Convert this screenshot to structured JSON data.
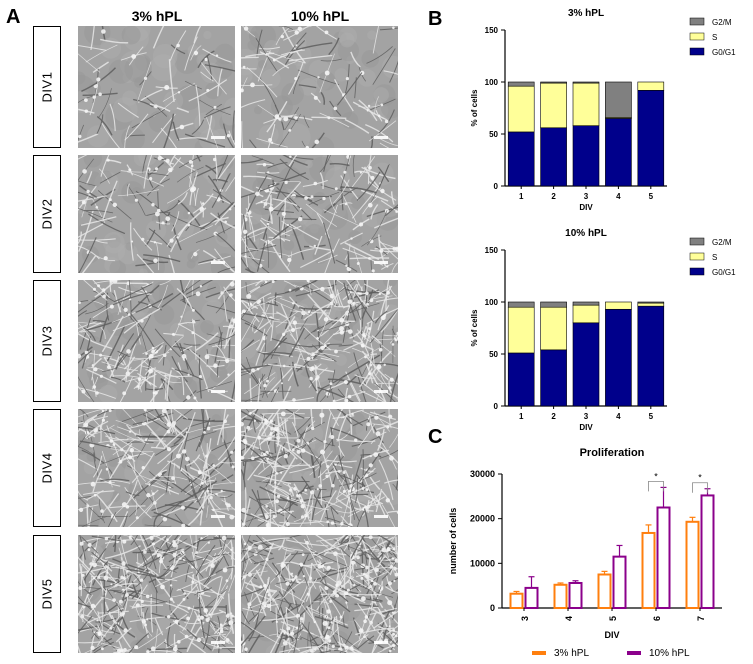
{
  "panel_labels": {
    "a": "A",
    "b": "B",
    "c": "C"
  },
  "panel_a": {
    "columns": [
      "3% hPL",
      "10% hPL"
    ],
    "rows": [
      "DIV1",
      "DIV2",
      "DIV3",
      "DIV4",
      "DIV5"
    ]
  },
  "chart_data": [
    {
      "type": "bar",
      "stacked": true,
      "title": "3% hPL",
      "xlabel": "DIV",
      "ylabel": "% of cells",
      "categories": [
        "1",
        "2",
        "3",
        "4",
        "5"
      ],
      "ylim": [
        0,
        150
      ],
      "yticks": [
        "0",
        "50",
        "100",
        "150"
      ],
      "series": [
        {
          "name": "G0/G1",
          "color": "#00008b",
          "values": [
            52,
            56,
            58,
            65,
            92
          ]
        },
        {
          "name": "S",
          "color": "#ffff99",
          "values": [
            44,
            43,
            41,
            1,
            8
          ]
        },
        {
          "name": "G2/M",
          "color": "#808080",
          "values": [
            4,
            1,
            1,
            34,
            0
          ]
        }
      ],
      "legend": [
        "G2/M",
        "S",
        "G0/G1"
      ]
    },
    {
      "type": "bar",
      "stacked": true,
      "title": "10% hPL",
      "xlabel": "DIV",
      "ylabel": "% of cells",
      "categories": [
        "1",
        "2",
        "3",
        "4",
        "5"
      ],
      "ylim": [
        0,
        150
      ],
      "yticks": [
        "0",
        "50",
        "100",
        "150"
      ],
      "series": [
        {
          "name": "G0/G1",
          "color": "#00008b",
          "values": [
            51,
            54,
            80,
            93,
            96
          ]
        },
        {
          "name": "S",
          "color": "#ffff99",
          "values": [
            44,
            41,
            17,
            7,
            3
          ]
        },
        {
          "name": "G2/M",
          "color": "#808080",
          "values": [
            5,
            5,
            3,
            0,
            1
          ]
        }
      ],
      "legend": [
        "G2/M",
        "S",
        "G0/G1"
      ]
    },
    {
      "type": "bar",
      "title": "Proliferation",
      "xlabel": "DIV",
      "ylabel": "number of cells",
      "categories": [
        "3",
        "4",
        "5",
        "6",
        "7"
      ],
      "ylim": [
        0,
        30000
      ],
      "yticks": [
        "0",
        "10000",
        "20000",
        "30000"
      ],
      "series": [
        {
          "name": "3% hPL",
          "color": "#ff7f0e",
          "values": [
            3200,
            5200,
            7500,
            16800,
            19300
          ],
          "errors": [
            500,
            400,
            700,
            1800,
            1000
          ]
        },
        {
          "name": "10% hPL",
          "color": "#8b008b",
          "values": [
            4500,
            5600,
            11500,
            22500,
            25200
          ],
          "errors": [
            2500,
            500,
            2500,
            4500,
            1500
          ]
        }
      ],
      "significance": [
        {
          "category": "6",
          "label": "*"
        },
        {
          "category": "7",
          "label": "*"
        }
      ]
    }
  ]
}
